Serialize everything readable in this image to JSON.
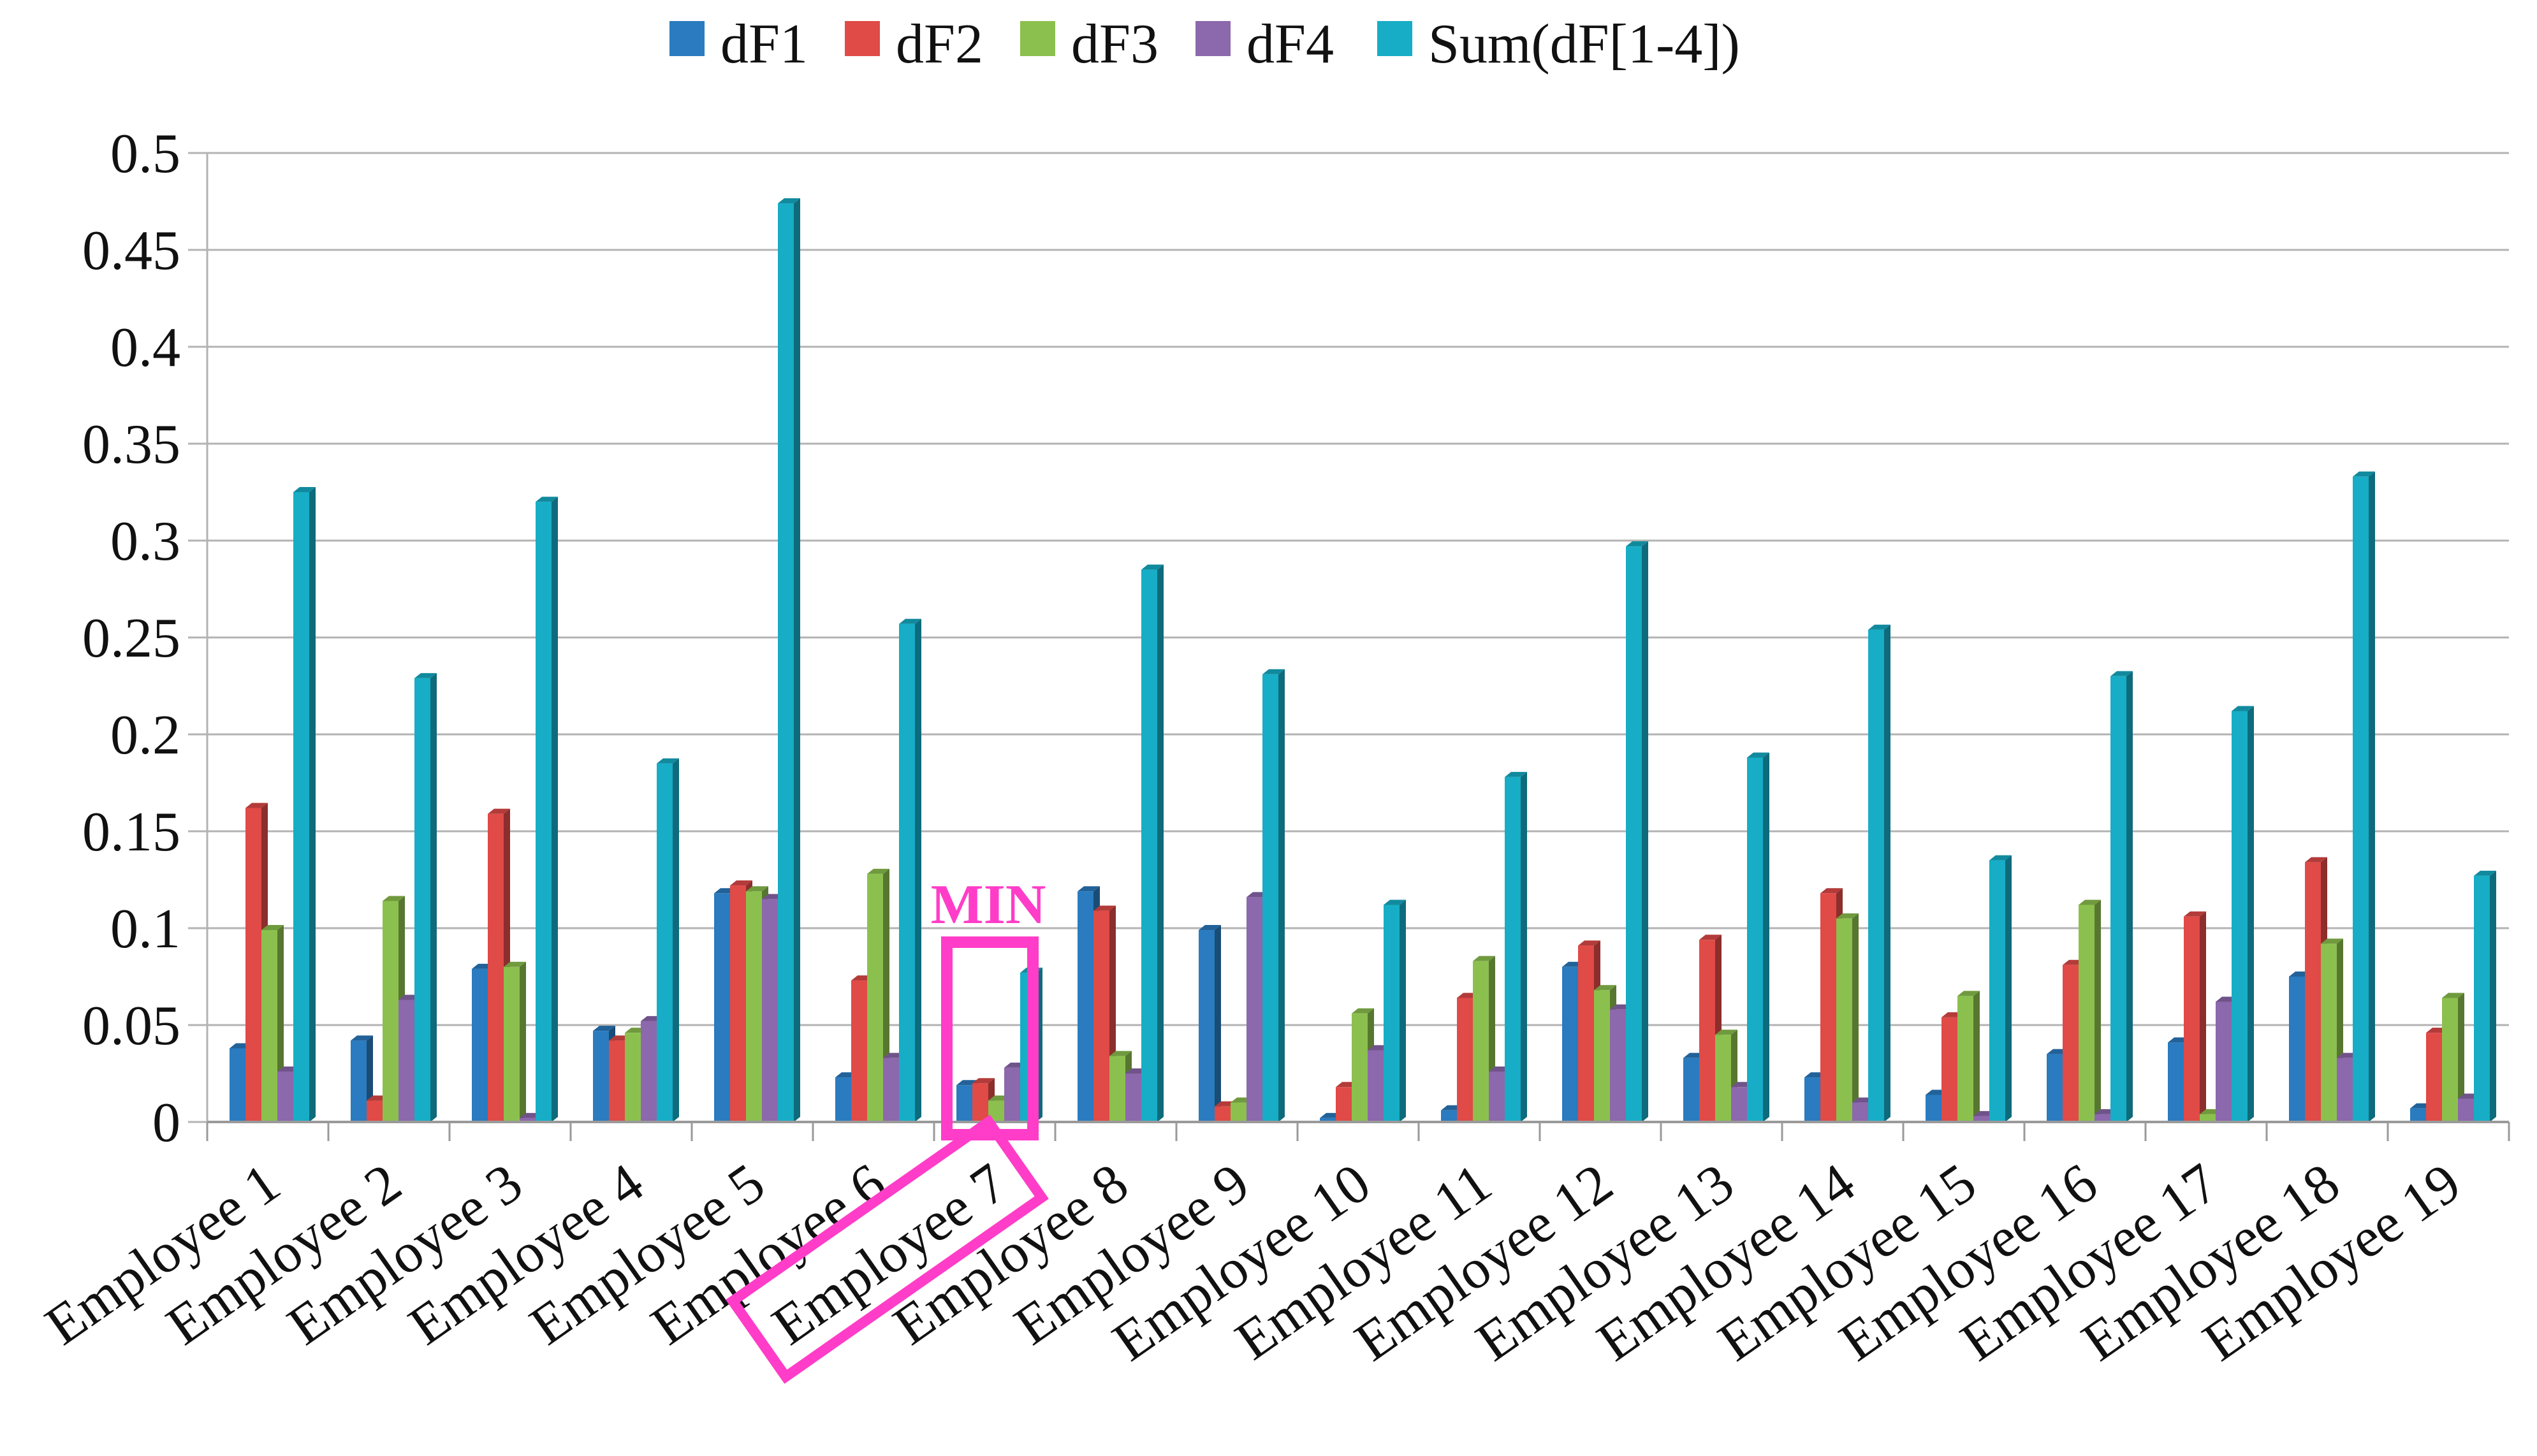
{
  "chart_data": {
    "type": "bar",
    "title": "",
    "xlabel": "",
    "ylabel": "",
    "ylim": [
      0,
      0.5
    ],
    "yticks": [
      "0",
      "0.05",
      "0.1",
      "0.15",
      "0.2",
      "0.25",
      "0.3",
      "0.35",
      "0.4",
      "0.45",
      "0.5"
    ],
    "legend_position": "top-center",
    "categories": [
      "Employee 1",
      "Employee 2",
      "Employee 3",
      "Employee 4",
      "Employee 5",
      "Employee 6",
      "Employee 7",
      "Employee 8",
      "Employee 9",
      "Employee 10",
      "Employee 11",
      "Employee 12",
      "Employee 13",
      "Employee 14",
      "Employee 15",
      "Employee 16",
      "Employee 17",
      "Employee 18",
      "Employee 19"
    ],
    "series": [
      {
        "name": "dF1",
        "color": "#2a7bbf",
        "values": [
          0.038,
          0.042,
          0.079,
          0.047,
          0.118,
          0.023,
          0.019,
          0.119,
          0.099,
          0.002,
          0.006,
          0.08,
          0.033,
          0.023,
          0.014,
          0.035,
          0.041,
          0.075,
          0.007
        ]
      },
      {
        "name": "dF2",
        "color": "#e04a47",
        "values": [
          0.162,
          0.011,
          0.159,
          0.042,
          0.122,
          0.073,
          0.02,
          0.109,
          0.008,
          0.018,
          0.064,
          0.091,
          0.094,
          0.118,
          0.054,
          0.081,
          0.106,
          0.134,
          0.046
        ]
      },
      {
        "name": "dF3",
        "color": "#8cc04e",
        "values": [
          0.099,
          0.114,
          0.08,
          0.046,
          0.119,
          0.128,
          0.011,
          0.034,
          0.01,
          0.056,
          0.083,
          0.068,
          0.045,
          0.105,
          0.065,
          0.112,
          0.004,
          0.092,
          0.064
        ]
      },
      {
        "name": "dF4",
        "color": "#8c68ac",
        "values": [
          0.026,
          0.063,
          0.002,
          0.052,
          0.115,
          0.033,
          0.028,
          0.025,
          0.116,
          0.037,
          0.026,
          0.058,
          0.018,
          0.01,
          0.003,
          0.004,
          0.062,
          0.033,
          0.012
        ]
      },
      {
        "name": "Sum(dF[1-4])",
        "color": "#17adc6",
        "values": [
          0.325,
          0.229,
          0.32,
          0.185,
          0.474,
          0.257,
          0.077,
          0.285,
          0.231,
          0.112,
          0.178,
          0.297,
          0.188,
          0.254,
          0.135,
          0.23,
          0.212,
          0.333,
          0.127
        ]
      }
    ],
    "annotations": [
      {
        "text": "MIN",
        "color": "#ff3dc8",
        "target_category": "Employee 7"
      }
    ]
  }
}
